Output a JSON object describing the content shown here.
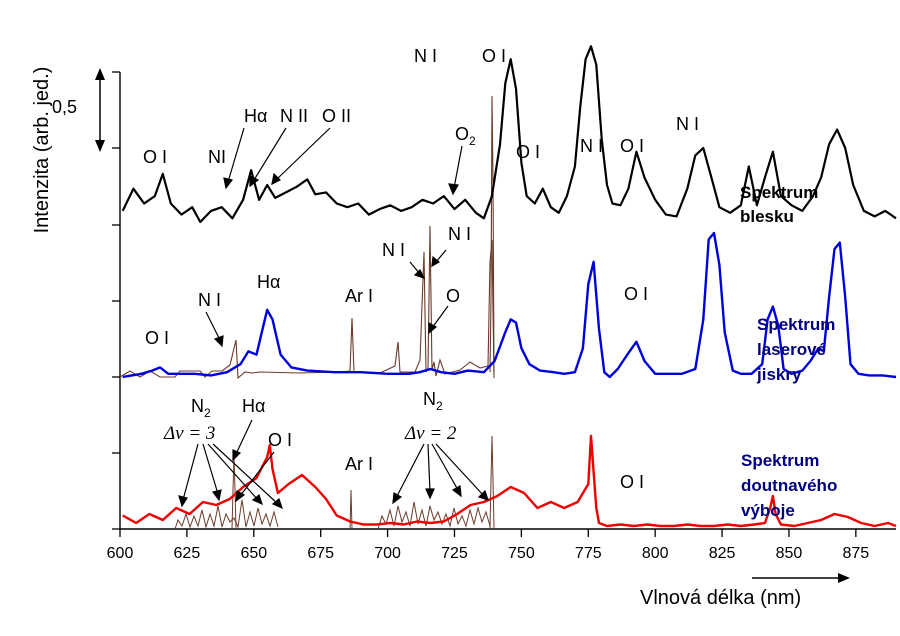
{
  "chart_data": {
    "type": "line",
    "xlabel": "Vlnová délka (nm)",
    "ylabel": "Intenzita (arb. jed.)",
    "xlim": [
      600,
      890
    ],
    "xticks": [
      600,
      625,
      650,
      675,
      700,
      725,
      750,
      775,
      800,
      825,
      850,
      875
    ],
    "scale_bar_label": "0,5",
    "series": [
      {
        "name": "Spektrum blesku",
        "label_lines": [
          "Spektrum",
          "blesku"
        ],
        "color": "#000000",
        "x": [
          601,
          605,
          609,
          613,
          616,
          619,
          623,
          627,
          630,
          634,
          638,
          642,
          646,
          649,
          652,
          655,
          658,
          662,
          666,
          670,
          673,
          677,
          681,
          685,
          689,
          693,
          697,
          701,
          705,
          709,
          713,
          717,
          721,
          725,
          729,
          733,
          736,
          739,
          742,
          744,
          746,
          748,
          750,
          752,
          755,
          758,
          761,
          764,
          767,
          770,
          772,
          774,
          776,
          778,
          780,
          782,
          784,
          787,
          790,
          793,
          796,
          800,
          804,
          808,
          812,
          815,
          818,
          821,
          824,
          828,
          832,
          835,
          838,
          841,
          844,
          847,
          851,
          855,
          859,
          862,
          865,
          868,
          871,
          874,
          878,
          882,
          886,
          890
        ],
        "y": [
          0.06,
          0.18,
          0.1,
          0.14,
          0.26,
          0.1,
          0.04,
          0.08,
          0.0,
          0.06,
          0.08,
          0.02,
          0.12,
          0.28,
          0.12,
          0.2,
          0.13,
          0.16,
          0.19,
          0.23,
          0.15,
          0.16,
          0.1,
          0.08,
          0.1,
          0.04,
          0.07,
          0.09,
          0.06,
          0.08,
          0.12,
          0.1,
          0.14,
          0.07,
          0.12,
          0.05,
          0.02,
          0.14,
          0.42,
          0.75,
          0.88,
          0.72,
          0.32,
          0.14,
          0.1,
          0.18,
          0.08,
          0.05,
          0.14,
          0.3,
          0.62,
          0.88,
          0.95,
          0.85,
          0.45,
          0.2,
          0.1,
          0.09,
          0.18,
          0.38,
          0.24,
          0.12,
          0.04,
          0.03,
          0.18,
          0.36,
          0.4,
          0.24,
          0.08,
          0.05,
          0.09,
          0.3,
          0.09,
          0.24,
          0.38,
          0.14,
          0.09,
          0.06,
          0.14,
          0.24,
          0.42,
          0.5,
          0.4,
          0.2,
          0.06,
          0.03,
          0.06,
          0.02
        ]
      },
      {
        "name": "Spektrum laserové jiskry",
        "label_lines": [
          "Spektrum",
          "laserové",
          "jiskry"
        ],
        "color": "#0000dd",
        "x": [
          601,
          608,
          612,
          615,
          618,
          622,
          628,
          634,
          640,
          645,
          648,
          651,
          653,
          655,
          657,
          660,
          664,
          670,
          680,
          690,
          700,
          708,
          712,
          716,
          720,
          725,
          730,
          736,
          740,
          744,
          746,
          748,
          750,
          753,
          757,
          762,
          766,
          770,
          773,
          775,
          777,
          779,
          781,
          783,
          786,
          790,
          793,
          796,
          800,
          805,
          810,
          815,
          818,
          820,
          822,
          824,
          826,
          829,
          832,
          836,
          840,
          842,
          844,
          846,
          848,
          851,
          855,
          858,
          861,
          863,
          865,
          867,
          869,
          871,
          873,
          876,
          880,
          885,
          890
        ],
        "y": [
          0.0,
          0.02,
          0.04,
          0.06,
          0.02,
          0.02,
          0.02,
          0.01,
          0.03,
          0.08,
          0.16,
          0.14,
          0.28,
          0.42,
          0.36,
          0.14,
          0.06,
          0.04,
          0.03,
          0.03,
          0.02,
          0.02,
          0.03,
          0.05,
          0.03,
          0.02,
          0.04,
          0.03,
          0.1,
          0.28,
          0.36,
          0.34,
          0.18,
          0.08,
          0.04,
          0.03,
          0.02,
          0.03,
          0.18,
          0.58,
          0.72,
          0.3,
          0.03,
          0.0,
          0.05,
          0.15,
          0.22,
          0.1,
          0.02,
          0.02,
          0.02,
          0.05,
          0.36,
          0.86,
          0.9,
          0.7,
          0.28,
          0.04,
          0.02,
          0.02,
          0.08,
          0.36,
          0.44,
          0.32,
          0.05,
          0.02,
          0.04,
          0.1,
          0.18,
          0.16,
          0.5,
          0.8,
          0.84,
          0.5,
          0.08,
          0.02,
          0.01,
          0.01,
          0.0
        ]
      },
      {
        "name": "Spektrum doutnavého výboje",
        "label_lines": [
          "Spektrum",
          "doutnavého",
          "výboje"
        ],
        "color": "#ee0000",
        "x": [
          601,
          606,
          611,
          616,
          621,
          626,
          631,
          636,
          641,
          646,
          651,
          655,
          656,
          657,
          659,
          663,
          668,
          673,
          677,
          681,
          686,
          691,
          696,
          701,
          706,
          711,
          716,
          721,
          726,
          731,
          736,
          741,
          746,
          751,
          756,
          761,
          766,
          771,
          775,
          776,
          777,
          778,
          779,
          782,
          787,
          792,
          797,
          802,
          807,
          812,
          817,
          822,
          827,
          832,
          837,
          841,
          843,
          844,
          845,
          847,
          852,
          857,
          862,
          867,
          872,
          877,
          882,
          887,
          890
        ],
        "y": [
          0.09,
          0.04,
          0.1,
          0.06,
          0.14,
          0.1,
          0.18,
          0.16,
          0.2,
          0.28,
          0.34,
          0.48,
          0.56,
          0.4,
          0.24,
          0.3,
          0.36,
          0.28,
          0.2,
          0.09,
          0.05,
          0.03,
          0.03,
          0.04,
          0.03,
          0.05,
          0.04,
          0.05,
          0.1,
          0.16,
          0.18,
          0.22,
          0.28,
          0.24,
          0.14,
          0.18,
          0.14,
          0.18,
          0.3,
          0.62,
          0.38,
          0.14,
          0.04,
          0.02,
          0.03,
          0.02,
          0.03,
          0.02,
          0.02,
          0.03,
          0.02,
          0.02,
          0.03,
          0.02,
          0.03,
          0.04,
          0.14,
          0.22,
          0.1,
          0.03,
          0.02,
          0.04,
          0.06,
          0.1,
          0.08,
          0.04,
          0.02,
          0.04,
          0.02
        ]
      }
    ],
    "annotations": {
      "top": [
        "O I",
        "NI",
        "Hα",
        "N II",
        "O II",
        "N I",
        "O I",
        "O",
        "2",
        "O I",
        "N I",
        "O I",
        "N I"
      ],
      "middle": [
        "O I",
        "N I",
        "Hα",
        "Ar I",
        "N I",
        "N I",
        "O",
        "O I"
      ],
      "bottom": [
        "N",
        "2",
        "Δv = 3",
        "Hα",
        "O I",
        "Ar I",
        "N",
        "2",
        "Δv = 2",
        "O I"
      ]
    }
  }
}
